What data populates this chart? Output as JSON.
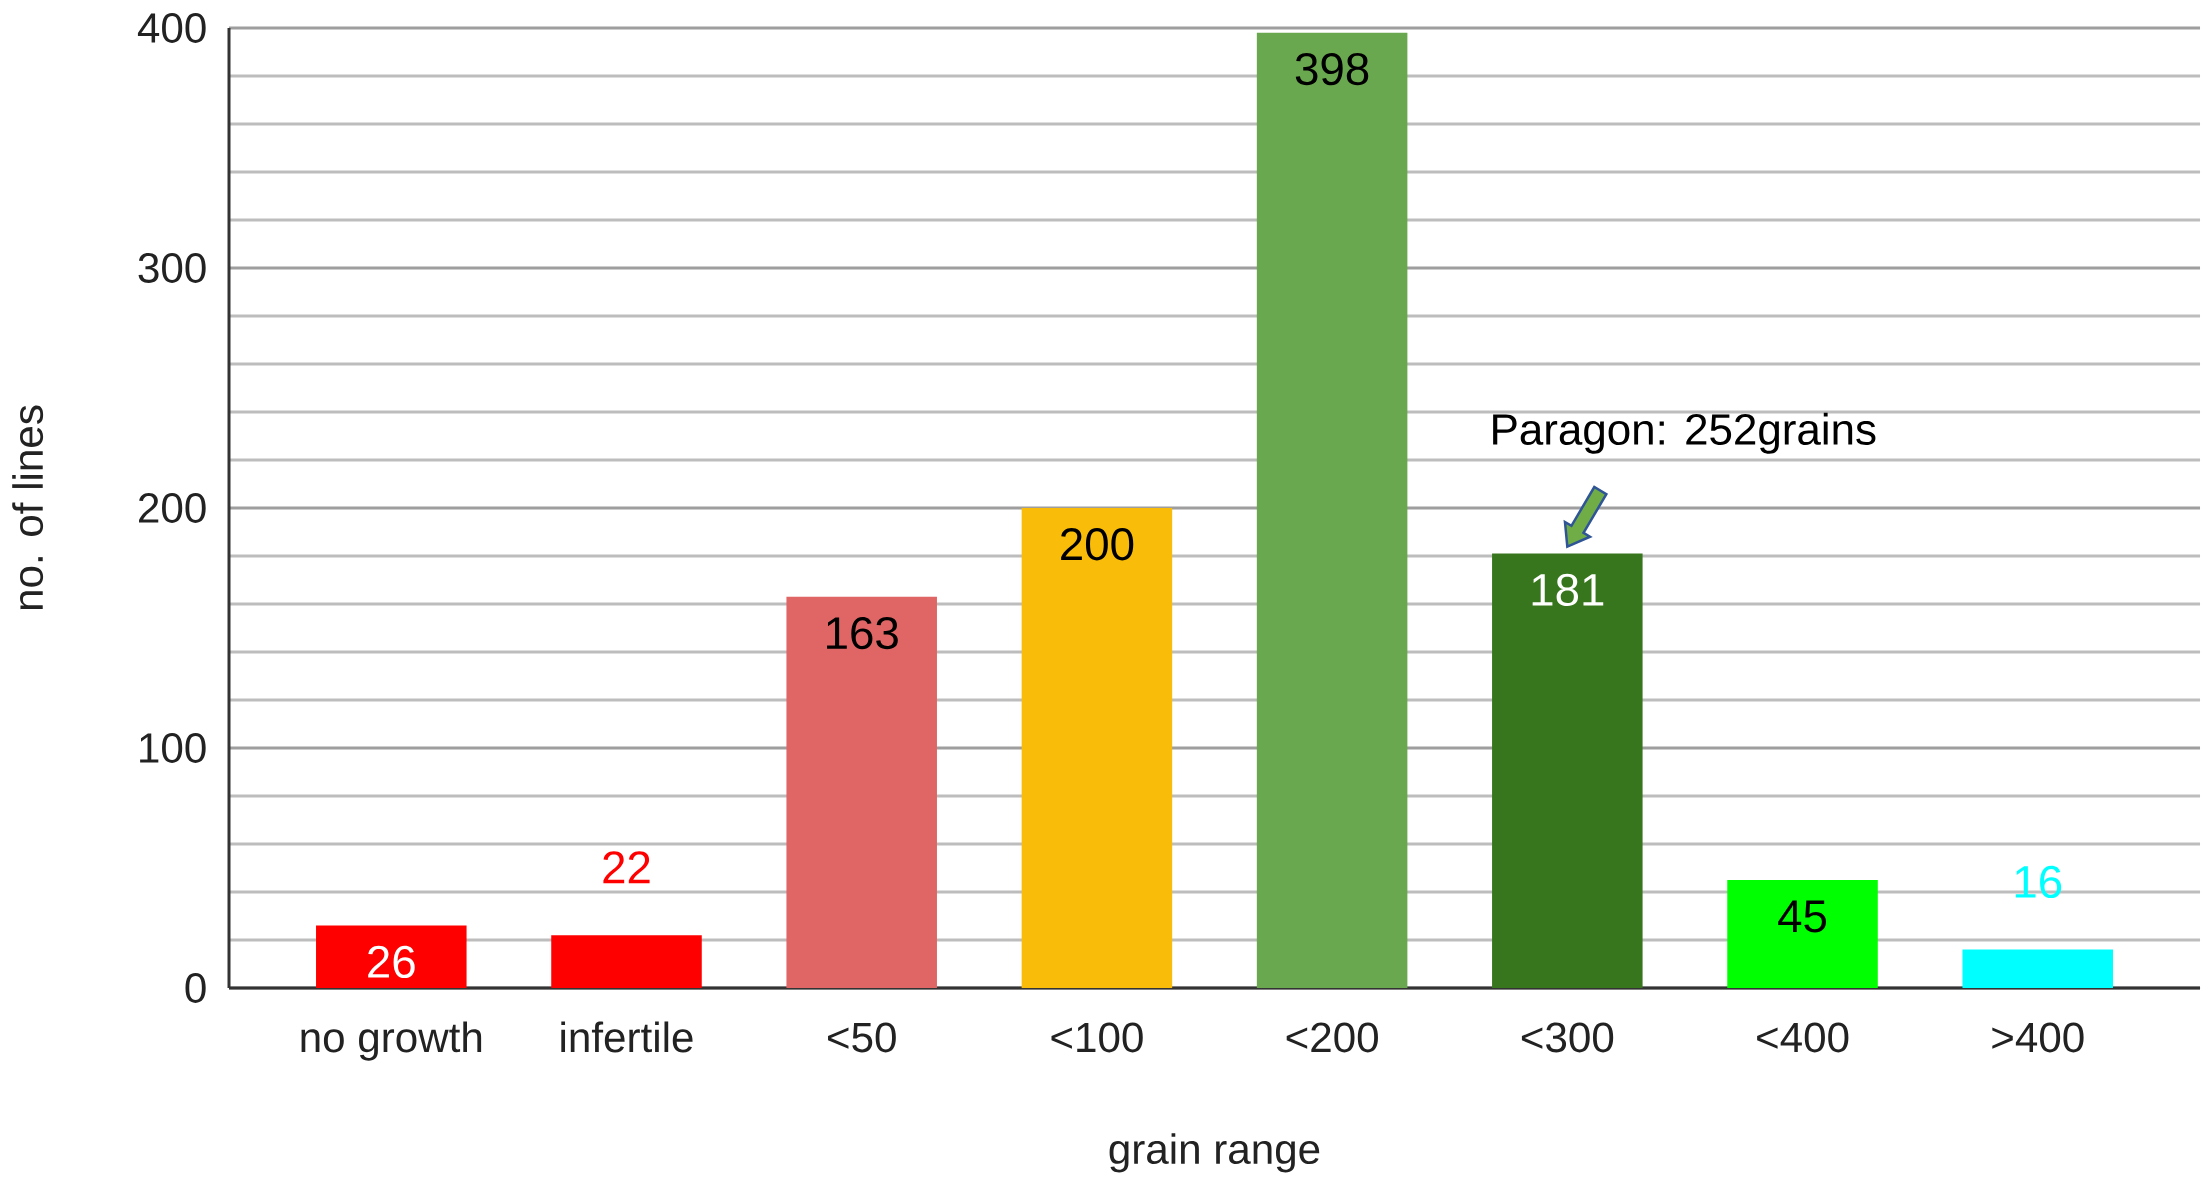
{
  "chart_data": {
    "type": "bar",
    "xlabel": "grain range",
    "ylabel": "no. of lines",
    "categories": [
      "no growth",
      "infertile",
      "<50",
      "<100",
      "<200",
      "<300",
      "<400",
      ">400"
    ],
    "values": [
      26,
      22,
      163,
      200,
      398,
      181,
      45,
      16
    ],
    "colors": [
      "#ff0000",
      "#ff0000",
      "#e06666",
      "#f9bc08",
      "#6aa84f",
      "#38761d",
      "#00ff00",
      "#00ffff"
    ],
    "ylim": [
      0,
      400
    ],
    "yticks": [
      0,
      {
        "value": 20,
        "label": null
      },
      {
        "value": 40,
        "label": null
      },
      {
        "value": 60,
        "label": null
      },
      {
        "value": 80,
        "label": null
      },
      100,
      {
        "value": 120,
        "label": null
      },
      {
        "value": 140,
        "label": null
      },
      {
        "value": 160,
        "label": null
      },
      {
        "value": 180,
        "label": null
      },
      200,
      {
        "value": 220,
        "label": null
      },
      {
        "value": 240,
        "label": null
      },
      {
        "value": 260,
        "label": null
      },
      {
        "value": 280,
        "label": null
      },
      300,
      {
        "value": 320,
        "label": null
      },
      {
        "value": 340,
        "label": null
      },
      {
        "value": 360,
        "label": null
      },
      {
        "value": 380,
        "label": null
      },
      400
    ],
    "grid": "y",
    "data_labels": true,
    "annotations": [
      {
        "text": "Paragon: 252grains",
        "x": "<300",
        "y": 181
      }
    ]
  }
}
